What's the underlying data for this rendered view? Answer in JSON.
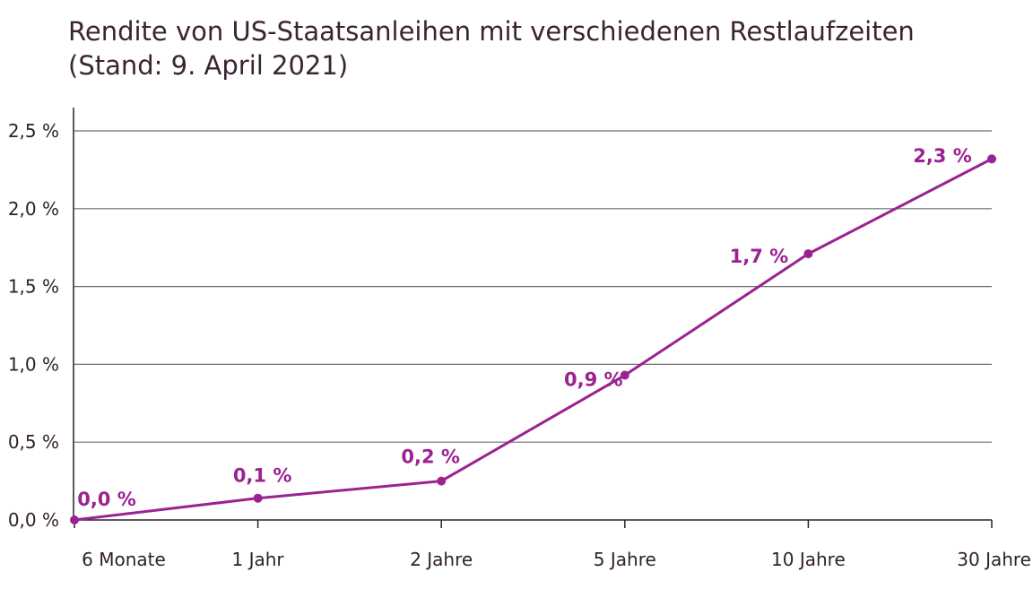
{
  "chart_data": {
    "type": "line",
    "title": "Rendite von US-Staatsanleihen mit verschiedenen Restlaufzeiten",
    "subtitle": "(Stand: 9. April 2021)",
    "categories": [
      "6 Monate",
      "1 Jahr",
      "2 Jahre",
      "5 Jahre",
      "10 Jahre",
      "30 Jahre"
    ],
    "series": [
      {
        "values": [
          0.0,
          0.14,
          0.25,
          0.93,
          1.71,
          2.32
        ],
        "data_labels": [
          "0,0 %",
          "0,1 %",
          "0,2 %",
          "0,9 %",
          "1,7 %",
          "2,3 %"
        ]
      }
    ],
    "ylim": [
      0,
      2.5
    ],
    "yticks": [
      0,
      0.5,
      1.0,
      1.5,
      2.0,
      2.5
    ],
    "ytick_labels": [
      "0,0 %",
      "0,5 %",
      "1,0 %",
      "1,5 %",
      "2,0 %",
      "2,5 %"
    ],
    "grid": true,
    "line_color": "#9a2291",
    "grid_color": "#6f6f6f"
  }
}
